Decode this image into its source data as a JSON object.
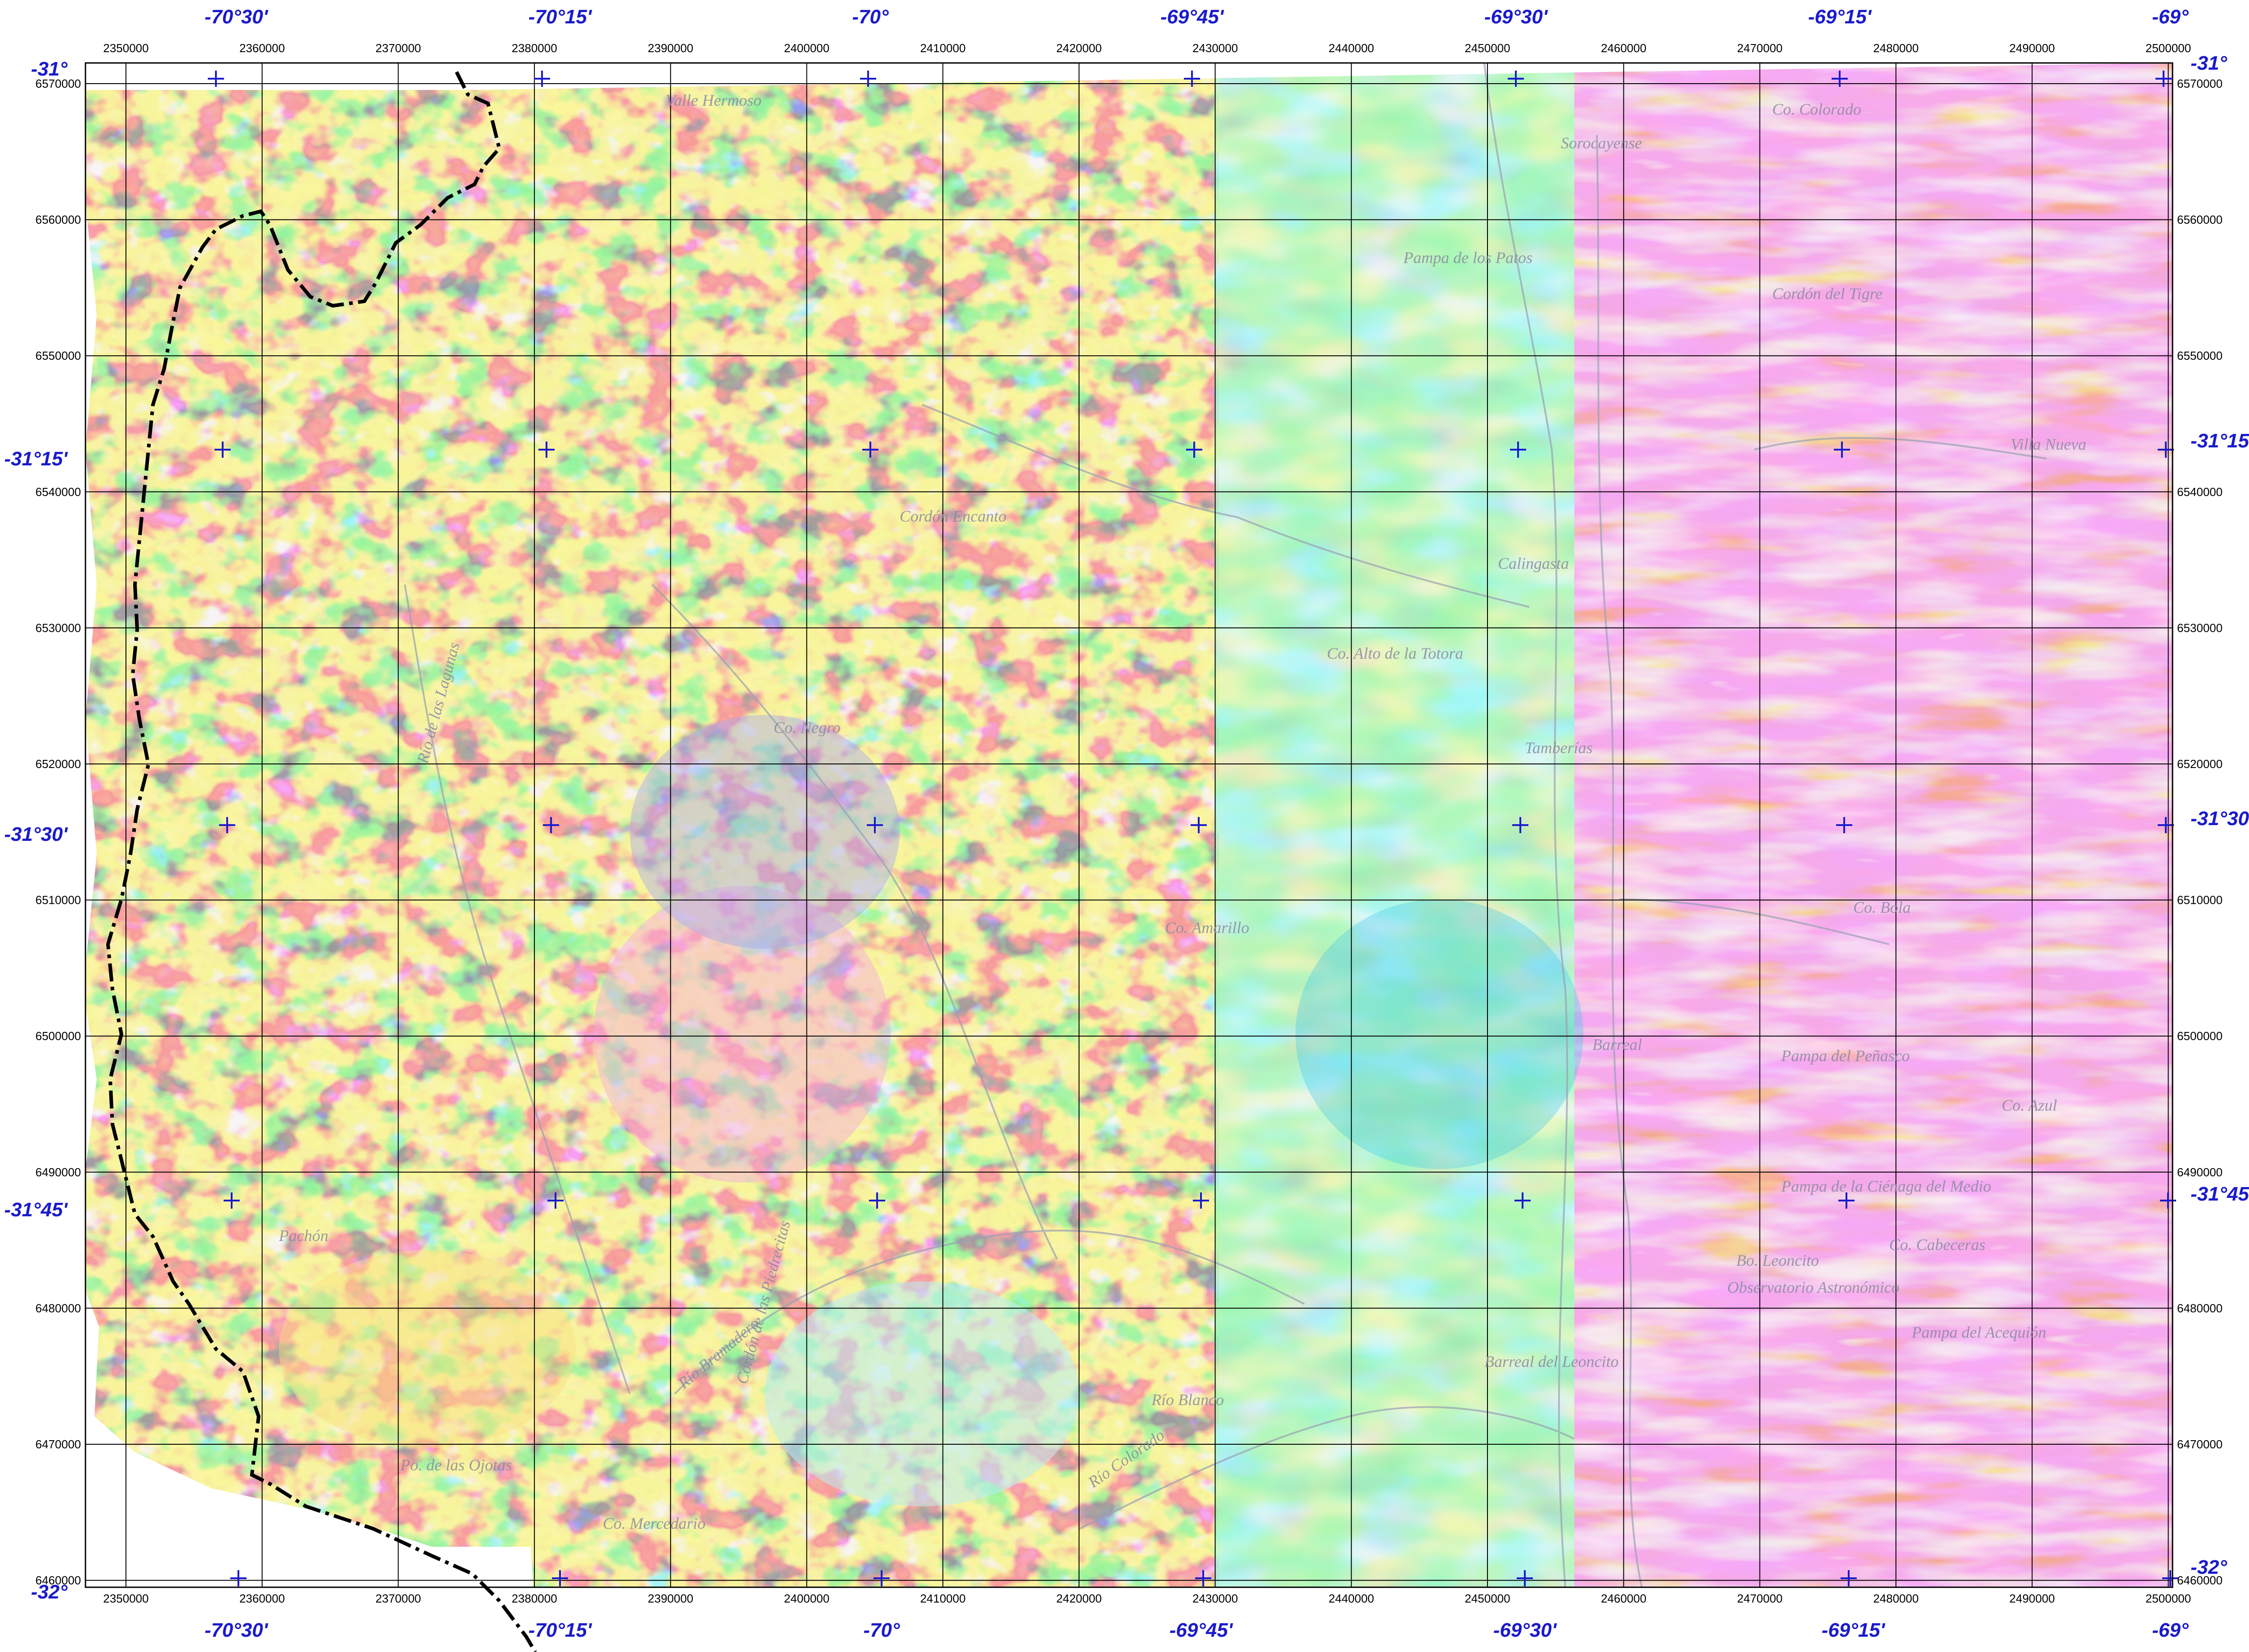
{
  "map": {
    "lon_labels": [
      "-70°30'",
      "-70°15'",
      "-70°",
      "-69°45'",
      "-69°30'",
      "-69°15'",
      "-69°"
    ],
    "lat_labels": [
      "-31°",
      "-31°15'",
      "-31°30'",
      "-31°45'",
      "-32°"
    ],
    "easting_labels": [
      "2350000",
      "2360000",
      "2370000",
      "2380000",
      "2390000",
      "2400000",
      "2410000",
      "2420000",
      "2430000",
      "2440000",
      "2450000",
      "2460000",
      "2470000",
      "2480000",
      "2490000",
      "2500000"
    ],
    "northing_labels": [
      "6570000",
      "6560000",
      "6550000",
      "6540000",
      "6530000",
      "6520000",
      "6510000",
      "6500000",
      "6490000",
      "6480000",
      "6470000",
      "6460000"
    ],
    "place_names": [
      "Valle Hermoso",
      "Co. Colorado",
      "Calingasta",
      "Tamberías",
      "Barreal",
      "Co. Amarillo",
      "Co. Mercedario",
      "Río de las Lagunas",
      "Cordón Encanto",
      "Co. Bola",
      "Pampa del Peñasco",
      "Pachón",
      "Río Blanco",
      "Co. Azul",
      "Pampa de la Ciénaga del Medio",
      "Río Bramadero",
      "Cordón de las Piedrecitas",
      "Río Colorado",
      "Co. Cabeceras",
      "Bo. Leoncito",
      "Observatorio Astronómico",
      "Po. de las Ojotas",
      "Co. Negro",
      "Barreal del Leoncito",
      "Pampa del Acequión",
      "Sorocayense",
      "Pampa de los Patos",
      "Cordón del Tigre",
      "Co. Alto de la Totora",
      "Villa Nueva"
    ],
    "colors": {
      "low": "#5050ee",
      "mid_low": "#40c8f0",
      "mid": "#60ee60",
      "mid_high": "#f8e050",
      "high": "#f04848",
      "very_high": "#f060d0",
      "peak": "#ffc8f8",
      "grid": "#000000",
      "label_blue": "#1a1acc",
      "border": "#000000",
      "road": "#9aa0b4"
    }
  }
}
